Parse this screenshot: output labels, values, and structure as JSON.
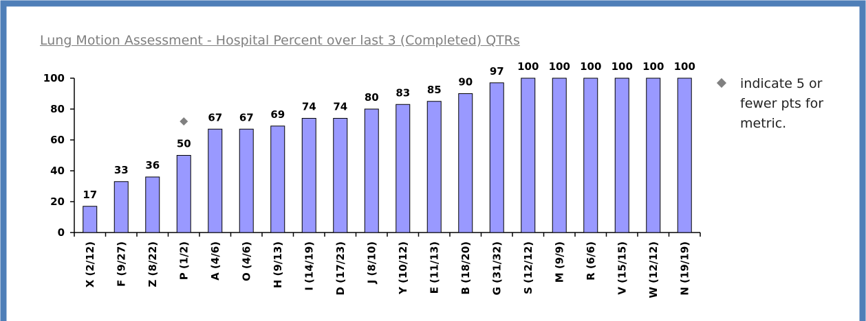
{
  "chart_data": {
    "type": "bar",
    "title": "Lung Motion Assessment - Hospital Percent over last 3 (Completed) QTRs",
    "categories": [
      "X (2/12)",
      "F (9/27)",
      "Z (8/22)",
      "P (1/2)",
      "A (4/6)",
      "O (4/6)",
      "H (9/13)",
      "I (14/19)",
      "D (17/23)",
      "J (8/10)",
      "Y (10/12)",
      "E (11/13)",
      "B (18/20)",
      "G (31/32)",
      "S (12/12)",
      "M (9/9)",
      "R (6/6)",
      "V (15/15)",
      "W (12/12)",
      "N (19/19)"
    ],
    "values": [
      17,
      33,
      36,
      50,
      67,
      67,
      69,
      74,
      74,
      80,
      83,
      85,
      90,
      97,
      100,
      100,
      100,
      100,
      100,
      100
    ],
    "color": "#9999ff",
    "markers": {
      "name": "indicate 5 or fewer pts for metric.",
      "color": "#808080",
      "values": [
        null,
        null,
        null,
        72,
        null,
        null,
        null,
        null,
        null,
        null,
        null,
        null,
        null,
        null,
        null,
        null,
        null,
        null,
        null,
        null
      ]
    },
    "ylim": [
      0,
      100
    ],
    "yticks": [
      0,
      20,
      40,
      60,
      80,
      100
    ]
  }
}
